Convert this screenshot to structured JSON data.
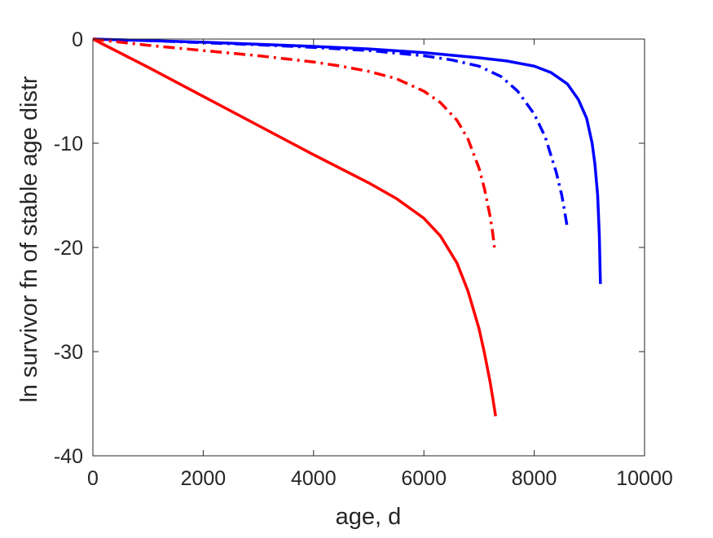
{
  "chart_data": {
    "type": "line",
    "title": "",
    "xlabel": "age, d",
    "ylabel": "ln survivor fn of stable age distr",
    "xlim": [
      0,
      10000
    ],
    "ylim": [
      -40,
      0
    ],
    "xticks": [
      0,
      2000,
      4000,
      6000,
      8000,
      10000
    ],
    "yticks": [
      0,
      -10,
      -20,
      -30,
      -40
    ],
    "xtick_labels": [
      "0",
      "2000",
      "4000",
      "6000",
      "8000",
      "10000"
    ],
    "ytick_labels": [
      "0",
      "-10",
      "-20",
      "-30",
      "-40"
    ],
    "grid": false,
    "box": true,
    "series": [
      {
        "color": "#0000ff",
        "line_style": "solid",
        "x": [
          0,
          1000,
          2000,
          3000,
          4000,
          5000,
          6000,
          7000,
          7500,
          8000,
          8300,
          8600,
          8800,
          8950,
          9050,
          9100,
          9150,
          9180,
          9200
        ],
        "y": [
          0,
          -0.15,
          -0.3,
          -0.5,
          -0.7,
          -0.95,
          -1.3,
          -1.8,
          -2.1,
          -2.6,
          -3.2,
          -4.3,
          -5.8,
          -7.6,
          -10,
          -12,
          -15,
          -18.8,
          -23.5
        ]
      },
      {
        "color": "#0000ff",
        "line_style": "dashdot",
        "x": [
          0,
          1000,
          2000,
          3000,
          4000,
          5000,
          6000,
          6500,
          7000,
          7400,
          7700,
          8000,
          8200,
          8400,
          8500,
          8550,
          8600
        ],
        "y": [
          0,
          -0.15,
          -0.35,
          -0.55,
          -0.8,
          -1.1,
          -1.6,
          -2.0,
          -2.6,
          -3.6,
          -5.0,
          -7.2,
          -9.4,
          -12.8,
          -15,
          -16.5,
          -18.1
        ]
      },
      {
        "color": "#ff0000",
        "line_style": "dashdot",
        "x": [
          0,
          1000,
          2000,
          3000,
          4000,
          4500,
          5000,
          5500,
          6000,
          6300,
          6600,
          6800,
          7000,
          7100,
          7200,
          7250,
          7280
        ],
        "y": [
          0,
          -0.6,
          -1.1,
          -1.6,
          -2.2,
          -2.6,
          -3.1,
          -3.8,
          -5.0,
          -6.1,
          -7.8,
          -9.6,
          -12.4,
          -14.4,
          -17.0,
          -18.7,
          -20.1
        ]
      },
      {
        "color": "#ff0000",
        "line_style": "solid",
        "x": [
          0,
          1000,
          2000,
          3000,
          4000,
          5000,
          5500,
          6000,
          6300,
          6600,
          6800,
          7000,
          7100,
          7200,
          7250,
          7300
        ],
        "y": [
          0,
          -2.7,
          -5.5,
          -8.3,
          -11.1,
          -13.8,
          -15.3,
          -17.2,
          -18.9,
          -21.5,
          -24.2,
          -27.8,
          -30.2,
          -32.9,
          -34.5,
          -36.2
        ]
      }
    ]
  }
}
